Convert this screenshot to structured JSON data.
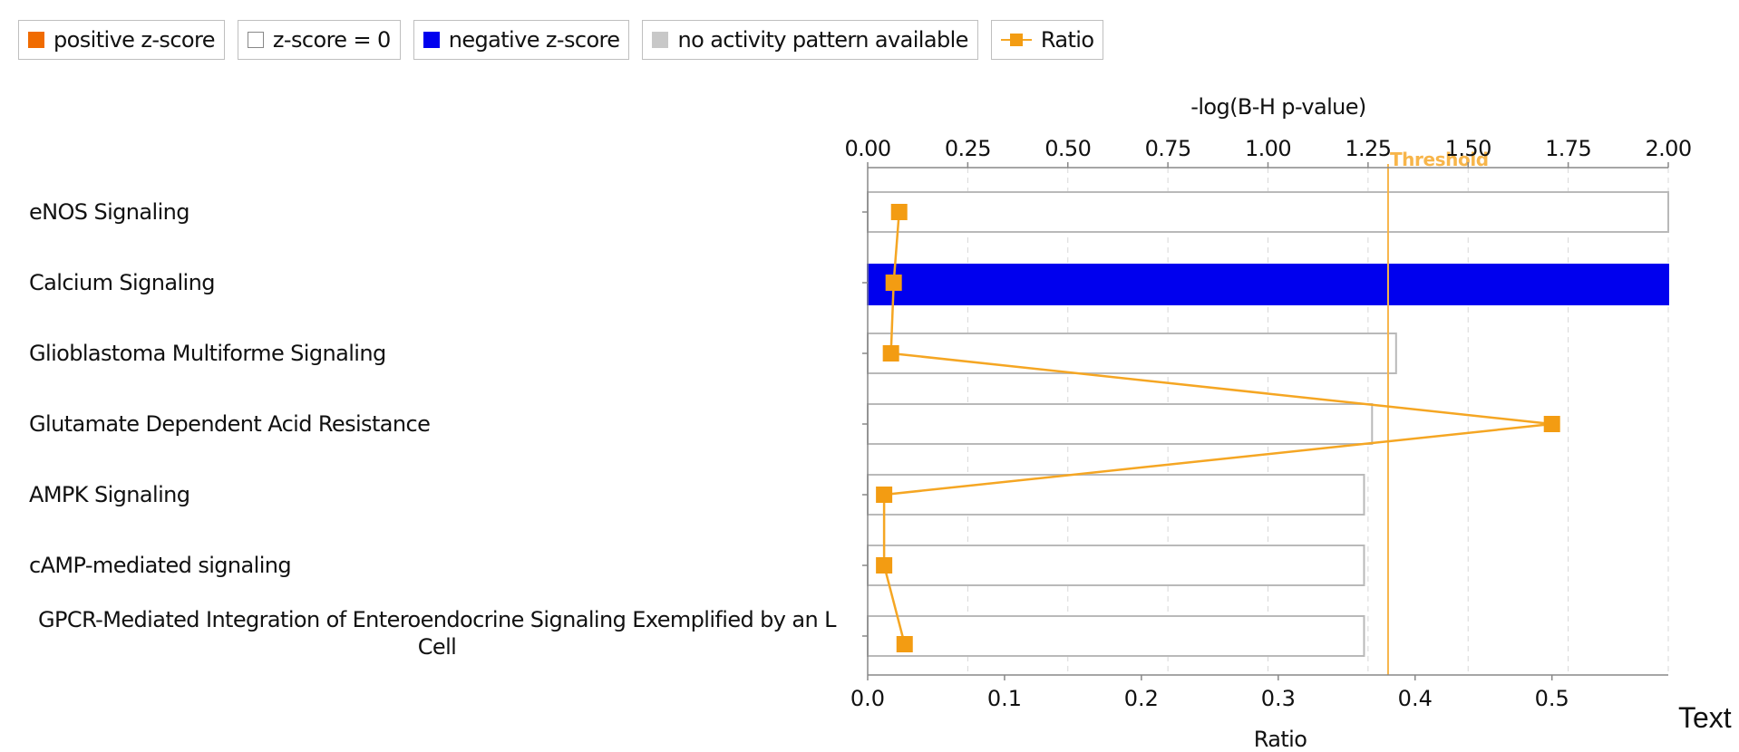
{
  "legend": {
    "positive": {
      "label": "positive z-score",
      "color": "#f06b00"
    },
    "zero": {
      "label": "z-score = 0",
      "color": "#ffffff"
    },
    "negative": {
      "label": "negative z-score",
      "color": "#0000ee"
    },
    "none": {
      "label": "no activity pattern available",
      "color": "#c8c8c8"
    },
    "ratio": {
      "label": "Ratio",
      "color": "#f39c12"
    }
  },
  "corner_text": "Text",
  "chart_data": {
    "type": "bar",
    "orientation": "horizontal",
    "categories": [
      "eNOS Signaling",
      "Calcium Signaling",
      "Glioblastoma Multiforme Signaling",
      "Glutamate Dependent Acid Resistance",
      "AMPK Signaling",
      "cAMP-mediated signaling",
      "GPCR-Mediated Integration of Enteroendocrine Signaling Exemplified by an L Cell"
    ],
    "series": [
      {
        "name": "-log(B-H p-value)",
        "values": [
          2.0,
          2.0,
          1.32,
          1.26,
          1.24,
          1.24,
          1.24
        ],
        "colors": [
          "#ffffff",
          "#0000ee",
          "#ffffff",
          "#ffffff",
          "#ffffff",
          "#ffffff",
          "#ffffff"
        ]
      },
      {
        "name": "Ratio",
        "values": [
          0.023,
          0.019,
          0.017,
          0.5,
          0.012,
          0.012,
          0.027
        ]
      }
    ],
    "top_axis": {
      "label": "-log(B-H p-value)",
      "range": [
        0,
        2.0
      ],
      "ticks": [
        "0.00",
        "0.25",
        "0.50",
        "0.75",
        "1.00",
        "1.25",
        "1.50",
        "1.75",
        "2.00"
      ]
    },
    "bottom_axis": {
      "label": "Ratio",
      "range": [
        0,
        0.585
      ],
      "ticks": [
        "0.0",
        "0.1",
        "0.2",
        "0.3",
        "0.4",
        "0.5"
      ]
    },
    "threshold": {
      "label": "Threshold",
      "value": 1.3
    },
    "grid": true,
    "legend_position": "top-left"
  }
}
